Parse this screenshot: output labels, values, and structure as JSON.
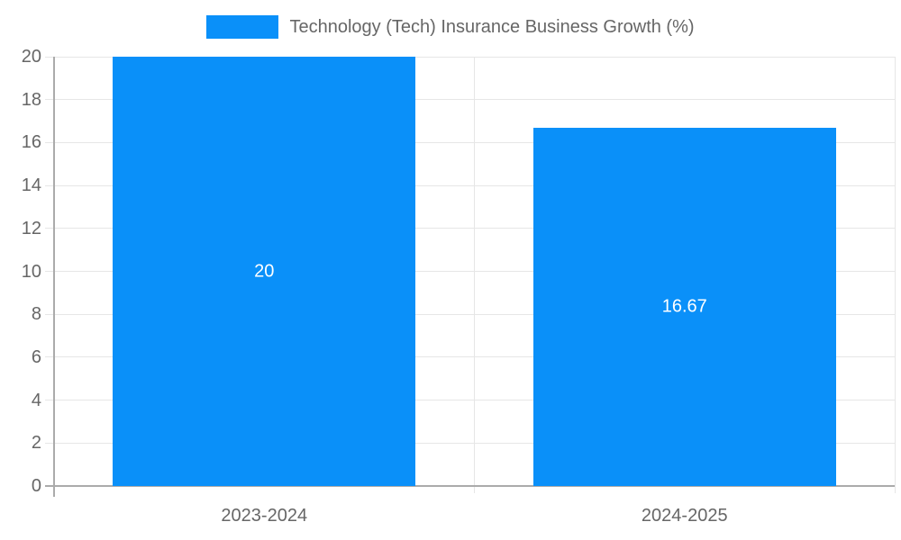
{
  "legend": {
    "label": "Technology (Tech) Insurance Business Growth (%)"
  },
  "chart_data": {
    "type": "bar",
    "title": "Technology (Tech) Insurance Business Growth (%)",
    "categories": [
      "2023-2024",
      "2024-2025"
    ],
    "values": [
      20,
      16.67
    ],
    "bar_labels": [
      "20",
      "16.67"
    ],
    "xlabel": "",
    "ylabel": "",
    "ylim": [
      0,
      20
    ],
    "ytick_step": 2,
    "ytick_labels": [
      "0",
      "2",
      "4",
      "6",
      "8",
      "10",
      "12",
      "14",
      "16",
      "18",
      "20"
    ],
    "grid": true,
    "legend_position": "top"
  },
  "colors": {
    "bar": "#0a90f9",
    "grid": "#e6e6e6",
    "axis": "#ababab",
    "tick_text": "#666666",
    "bar_label_text": "#ffffff",
    "legend_text": "#666666",
    "background": "#ffffff"
  }
}
